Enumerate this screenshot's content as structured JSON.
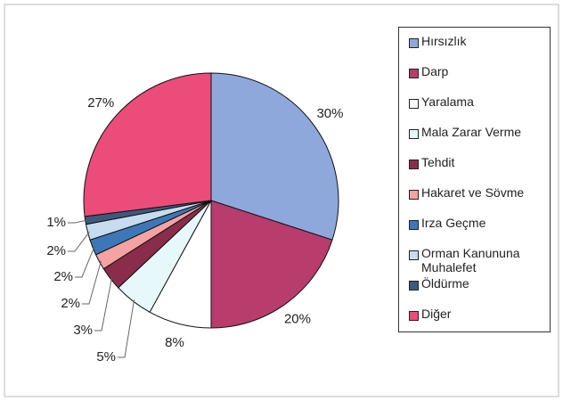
{
  "chart_data": {
    "type": "pie",
    "categories": [
      "Hırsızlık",
      "Darp",
      "Yaralama",
      "Mala Zarar Verme",
      "Tehdit",
      "Hakaret ve Sövme",
      "Irza Geçme",
      "Orman Kanununa Muhalefet",
      "Öldürme",
      "Diğer"
    ],
    "values": [
      30,
      20,
      8,
      5,
      3,
      2,
      2,
      2,
      1,
      27
    ],
    "value_labels": [
      "30%",
      "20%",
      "8%",
      "5%",
      "3%",
      "2%",
      "2%",
      "2%",
      "1%",
      "27%"
    ],
    "colors": [
      "#8ea8dc",
      "#b83c6c",
      "#ffffff",
      "#e6f8fa",
      "#8a2c4c",
      "#f4a2a2",
      "#3c78b8",
      "#c8dcf0",
      "#3c5a7c",
      "#ec4c7a"
    ],
    "legend": "right"
  }
}
